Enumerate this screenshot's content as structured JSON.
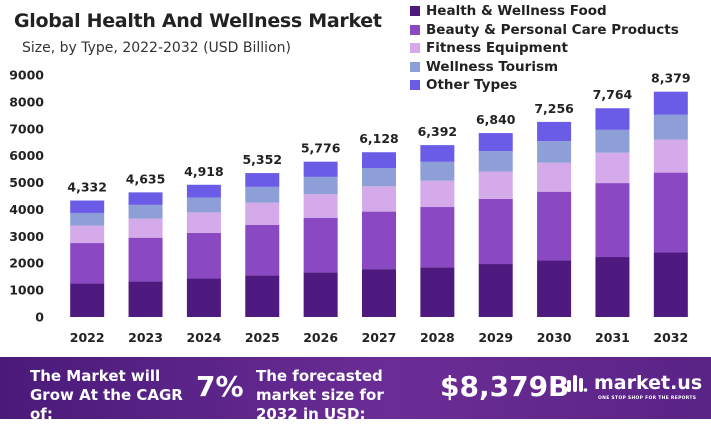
{
  "chart_data": {
    "type": "bar",
    "stacked": true,
    "title": "Global Health And Wellness Market",
    "subtitle": "Size, by Type, 2022-2032 (USD Billion)",
    "categories": [
      "2022",
      "2023",
      "2024",
      "2025",
      "2026",
      "2027",
      "2028",
      "2029",
      "2030",
      "2031",
      "2032"
    ],
    "totals": [
      4332,
      4635,
      4918,
      5352,
      5776,
      6128,
      6392,
      6840,
      7256,
      7764,
      8379
    ],
    "total_labels": [
      "4,332",
      "4,635",
      "4,918",
      "5,352",
      "5,776",
      "6,128",
      "6,392",
      "6,840",
      "7,256",
      "7,764",
      "8,379"
    ],
    "series": [
      {
        "name": "Health & Wellness Food",
        "color": "#4e1a7f",
        "values": [
          1250,
          1330,
          1430,
          1550,
          1660,
          1780,
          1850,
          1970,
          2100,
          2230,
          2400
        ]
      },
      {
        "name": "Beauty & Personal Care Products",
        "color": "#8a48c2",
        "values": [
          1500,
          1620,
          1700,
          1880,
          2030,
          2140,
          2240,
          2420,
          2560,
          2750,
          2970
        ]
      },
      {
        "name": "Fitness Equipment",
        "color": "#d5aaea",
        "values": [
          650,
          710,
          760,
          820,
          880,
          940,
          980,
          1020,
          1080,
          1130,
          1230
        ]
      },
      {
        "name": "Wellness Tourism",
        "color": "#8e9fd8",
        "values": [
          470,
          510,
          550,
          590,
          640,
          680,
          700,
          760,
          800,
          850,
          920
        ]
      },
      {
        "name": "Other Types",
        "color": "#6a5ce6",
        "values": [
          462,
          465,
          478,
          512,
          566,
          588,
          622,
          670,
          716,
          804,
          859
        ]
      }
    ],
    "ylim": [
      0,
      9000
    ],
    "yticks": [
      0,
      1000,
      2000,
      3000,
      4000,
      5000,
      6000,
      7000,
      8000,
      9000
    ],
    "xlabel": "",
    "ylabel": "",
    "grid": false,
    "legend_position": "top-right"
  },
  "footer": {
    "cagr_label": "The Market will Grow At the CAGR of:",
    "cagr_value": "7%",
    "size_label": "The forecasted market size for 2032 in USD:",
    "size_value": "$8,379B",
    "brand": "market.us",
    "tagline": "ONE STOP SHOP FOR THE REPORTS"
  }
}
